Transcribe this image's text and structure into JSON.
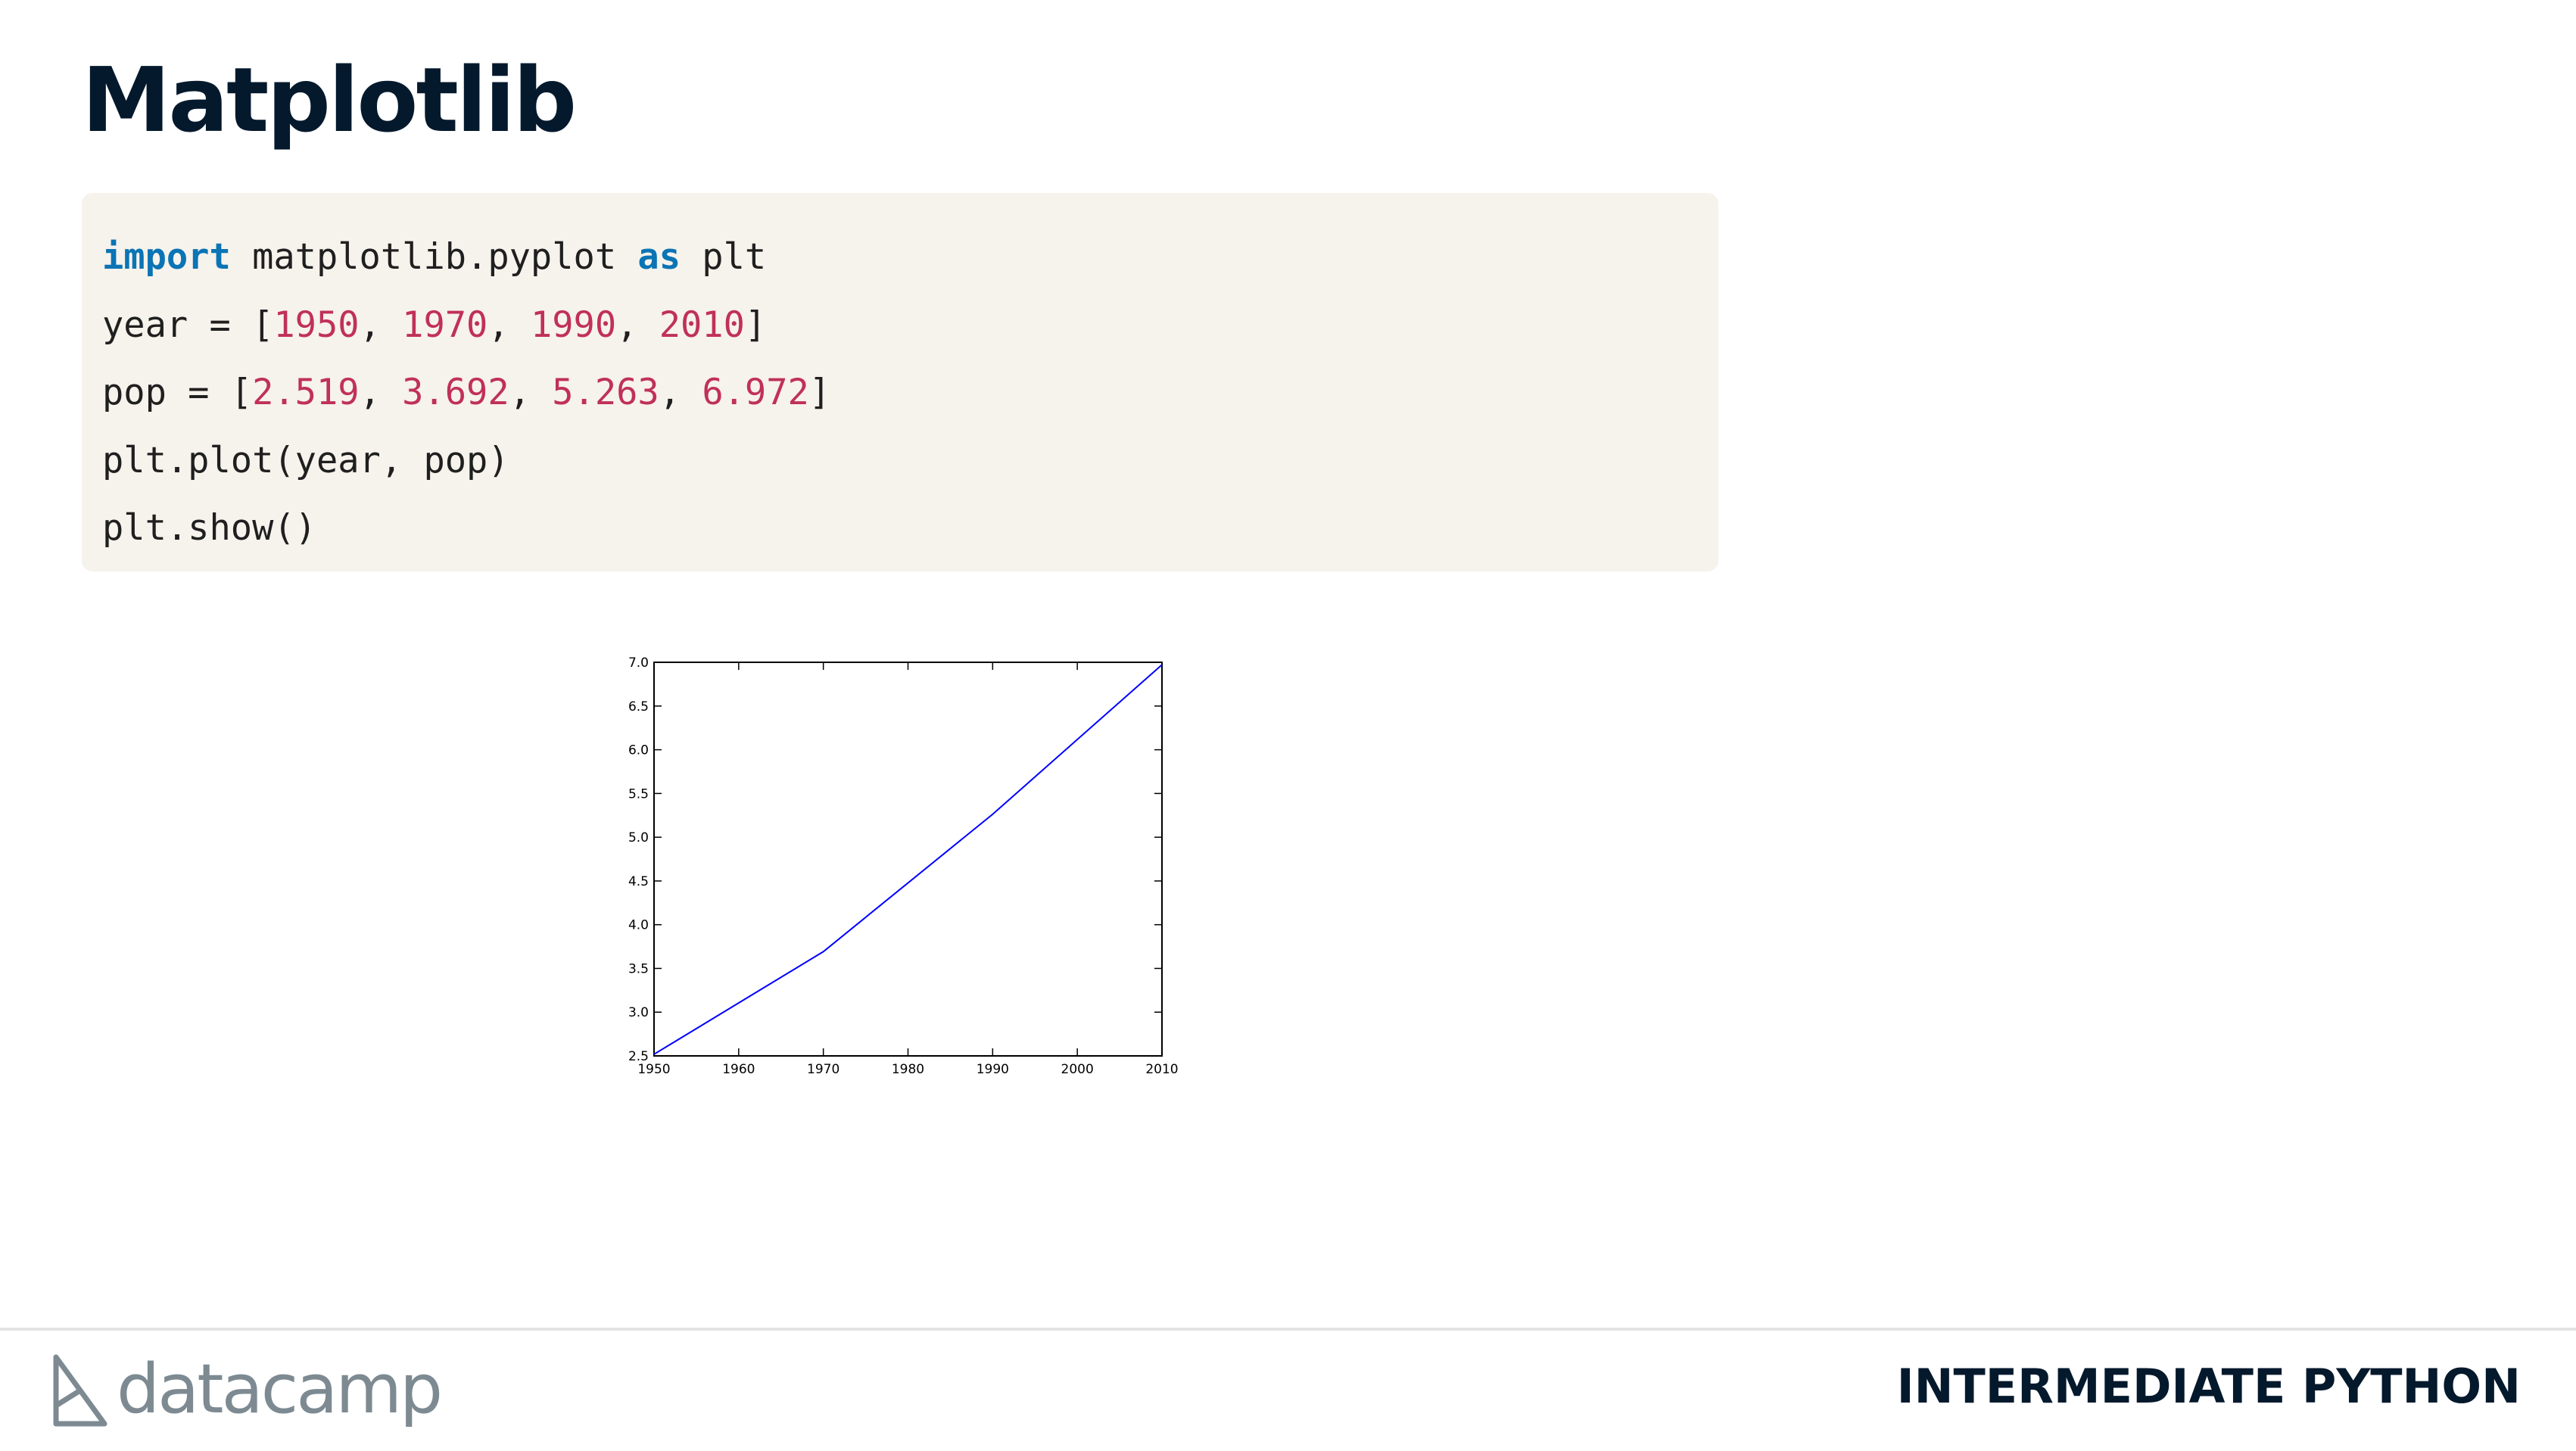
{
  "slide": {
    "title": "Matplotlib",
    "course_title": "INTERMEDIATE PYTHON",
    "brand": "datacamp"
  },
  "code": {
    "line1": {
      "kw1": "import",
      "t1": " matplotlib.pyplot ",
      "kw2": "as",
      "t2": " plt"
    },
    "line2": {
      "t1": "year = [",
      "n1": "1950",
      "s1": ", ",
      "n2": "1970",
      "s2": ", ",
      "n3": "1990",
      "s3": ", ",
      "n4": "2010",
      "t2": "]"
    },
    "line3": {
      "t1": "pop = [",
      "n1": "2.519",
      "s1": ", ",
      "n2": "3.692",
      "s2": ", ",
      "n3": "5.263",
      "s3": ", ",
      "n4": "6.972",
      "t2": "]"
    },
    "line4": "plt.plot(year, pop)",
    "line5": "plt.show()"
  },
  "colors": {
    "keyword": "#0a74b5",
    "number": "#c0305a",
    "title": "#05192d",
    "code_bg": "#f6f2ec",
    "line": "#0000ff"
  },
  "chart_data": {
    "type": "line",
    "x": [
      1950,
      1970,
      1990,
      2010
    ],
    "series": [
      {
        "values": [
          2.519,
          3.692,
          5.263,
          6.972
        ]
      }
    ],
    "xlim": [
      1950,
      2010
    ],
    "ylim": [
      2.5,
      7.0
    ],
    "xticks": [
      "1950",
      "1960",
      "1970",
      "1980",
      "1990",
      "2000",
      "2010"
    ],
    "yticks": [
      "2.5",
      "3.0",
      "3.5",
      "4.0",
      "4.5",
      "5.0",
      "5.5",
      "6.0",
      "6.5",
      "7.0"
    ],
    "grid": false,
    "title": "",
    "xlabel": "",
    "ylabel": ""
  }
}
